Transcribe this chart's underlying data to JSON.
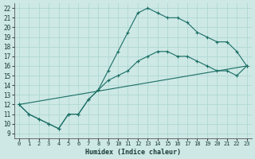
{
  "title": "",
  "xlabel": "Humidex (Indice chaleur)",
  "bg_color": "#cde8e5",
  "line_color": "#1a6e64",
  "grid_color": "#b0d8d4",
  "xlim": [
    -0.5,
    23.5
  ],
  "ylim": [
    8.5,
    22.5
  ],
  "xticks": [
    0,
    1,
    2,
    3,
    4,
    5,
    6,
    7,
    8,
    9,
    10,
    11,
    12,
    13,
    14,
    15,
    16,
    17,
    18,
    19,
    20,
    21,
    22,
    23
  ],
  "yticks": [
    9,
    10,
    11,
    12,
    13,
    14,
    15,
    16,
    17,
    18,
    19,
    20,
    21,
    22
  ],
  "curve1_x": [
    0,
    1,
    2,
    3,
    4,
    5,
    6,
    7,
    8,
    9,
    10,
    11,
    12,
    13,
    14,
    15,
    16,
    17,
    18,
    19,
    20,
    21,
    22,
    23
  ],
  "curve1_y": [
    12,
    11,
    10.5,
    10,
    9.5,
    11,
    11,
    12.5,
    13.5,
    15.5,
    17.5,
    19.5,
    21.5,
    22,
    21.5,
    21,
    21,
    20.5,
    19.5,
    19,
    18.5,
    18.5,
    17.5,
    16
  ],
  "curve2_x": [
    0,
    1,
    2,
    3,
    4,
    5,
    6,
    7,
    8,
    9,
    10,
    11,
    12,
    13,
    14,
    15,
    16,
    17,
    18,
    19,
    20,
    21,
    22,
    23
  ],
  "curve2_y": [
    12,
    11,
    10.5,
    10,
    9.5,
    11,
    11,
    12.5,
    13.5,
    14.5,
    15,
    15.5,
    16.5,
    17,
    17.5,
    17.5,
    17,
    17,
    16.5,
    16,
    15.5,
    15.5,
    15,
    16
  ],
  "curve3_x": [
    0,
    23
  ],
  "curve3_y": [
    12,
    16
  ]
}
